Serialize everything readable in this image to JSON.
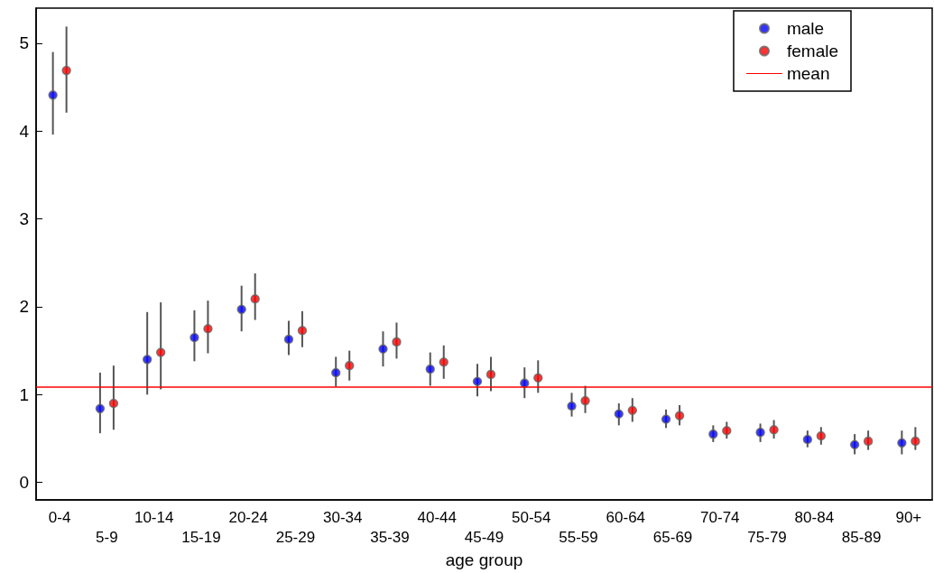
{
  "chart_data": {
    "type": "scatter",
    "xlabel": "age group",
    "categories": [
      "0-4",
      "5-9",
      "10-14",
      "15-19",
      "20-24",
      "25-29",
      "30-34",
      "35-39",
      "40-44",
      "45-49",
      "50-54",
      "55-59",
      "60-64",
      "65-69",
      "70-74",
      "75-79",
      "80-84",
      "85-89",
      "90+"
    ],
    "series": [
      {
        "name": "male",
        "color": "#0000ff",
        "values": [
          4.41,
          0.84,
          1.4,
          1.65,
          1.97,
          1.63,
          1.25,
          1.52,
          1.29,
          1.15,
          1.13,
          0.87,
          0.78,
          0.72,
          0.55,
          0.57,
          0.49,
          0.43,
          0.45
        ],
        "errors": [
          [
            3.96,
            4.9
          ],
          [
            0.56,
            1.25
          ],
          [
            1.0,
            1.94
          ],
          [
            1.38,
            1.96
          ],
          [
            1.72,
            2.24
          ],
          [
            1.45,
            1.84
          ],
          [
            1.09,
            1.43
          ],
          [
            1.32,
            1.72
          ],
          [
            1.1,
            1.48
          ],
          [
            0.98,
            1.35
          ],
          [
            0.96,
            1.31
          ],
          [
            0.75,
            1.02
          ],
          [
            0.65,
            0.9
          ],
          [
            0.62,
            0.83
          ],
          [
            0.46,
            0.65
          ],
          [
            0.46,
            0.67
          ],
          [
            0.4,
            0.59
          ],
          [
            0.32,
            0.55
          ],
          [
            0.32,
            0.59
          ]
        ]
      },
      {
        "name": "female",
        "color": "#ff0000",
        "values": [
          4.69,
          0.9,
          1.48,
          1.75,
          2.09,
          1.73,
          1.33,
          1.6,
          1.37,
          1.23,
          1.19,
          0.93,
          0.82,
          0.76,
          0.59,
          0.6,
          0.53,
          0.47,
          0.47
        ],
        "errors": [
          [
            4.21,
            5.19
          ],
          [
            0.6,
            1.33
          ],
          [
            1.06,
            2.05
          ],
          [
            1.47,
            2.07
          ],
          [
            1.85,
            2.38
          ],
          [
            1.54,
            1.95
          ],
          [
            1.16,
            1.5
          ],
          [
            1.41,
            1.82
          ],
          [
            1.18,
            1.56
          ],
          [
            1.04,
            1.43
          ],
          [
            1.02,
            1.39
          ],
          [
            0.79,
            1.1
          ],
          [
            0.69,
            0.96
          ],
          [
            0.65,
            0.88
          ],
          [
            0.5,
            0.69
          ],
          [
            0.5,
            0.71
          ],
          [
            0.43,
            0.63
          ],
          [
            0.37,
            0.59
          ],
          [
            0.37,
            0.63
          ]
        ]
      }
    ],
    "ref_lines": [
      {
        "axis": "y",
        "value": 1.09,
        "label": "mean",
        "color": "#ff0000"
      }
    ],
    "ylim": [
      -0.2,
      5.4
    ],
    "yticks": [
      0,
      1,
      2,
      3,
      4,
      5
    ],
    "grid": false,
    "legend": "top right",
    "marker": "circle"
  }
}
